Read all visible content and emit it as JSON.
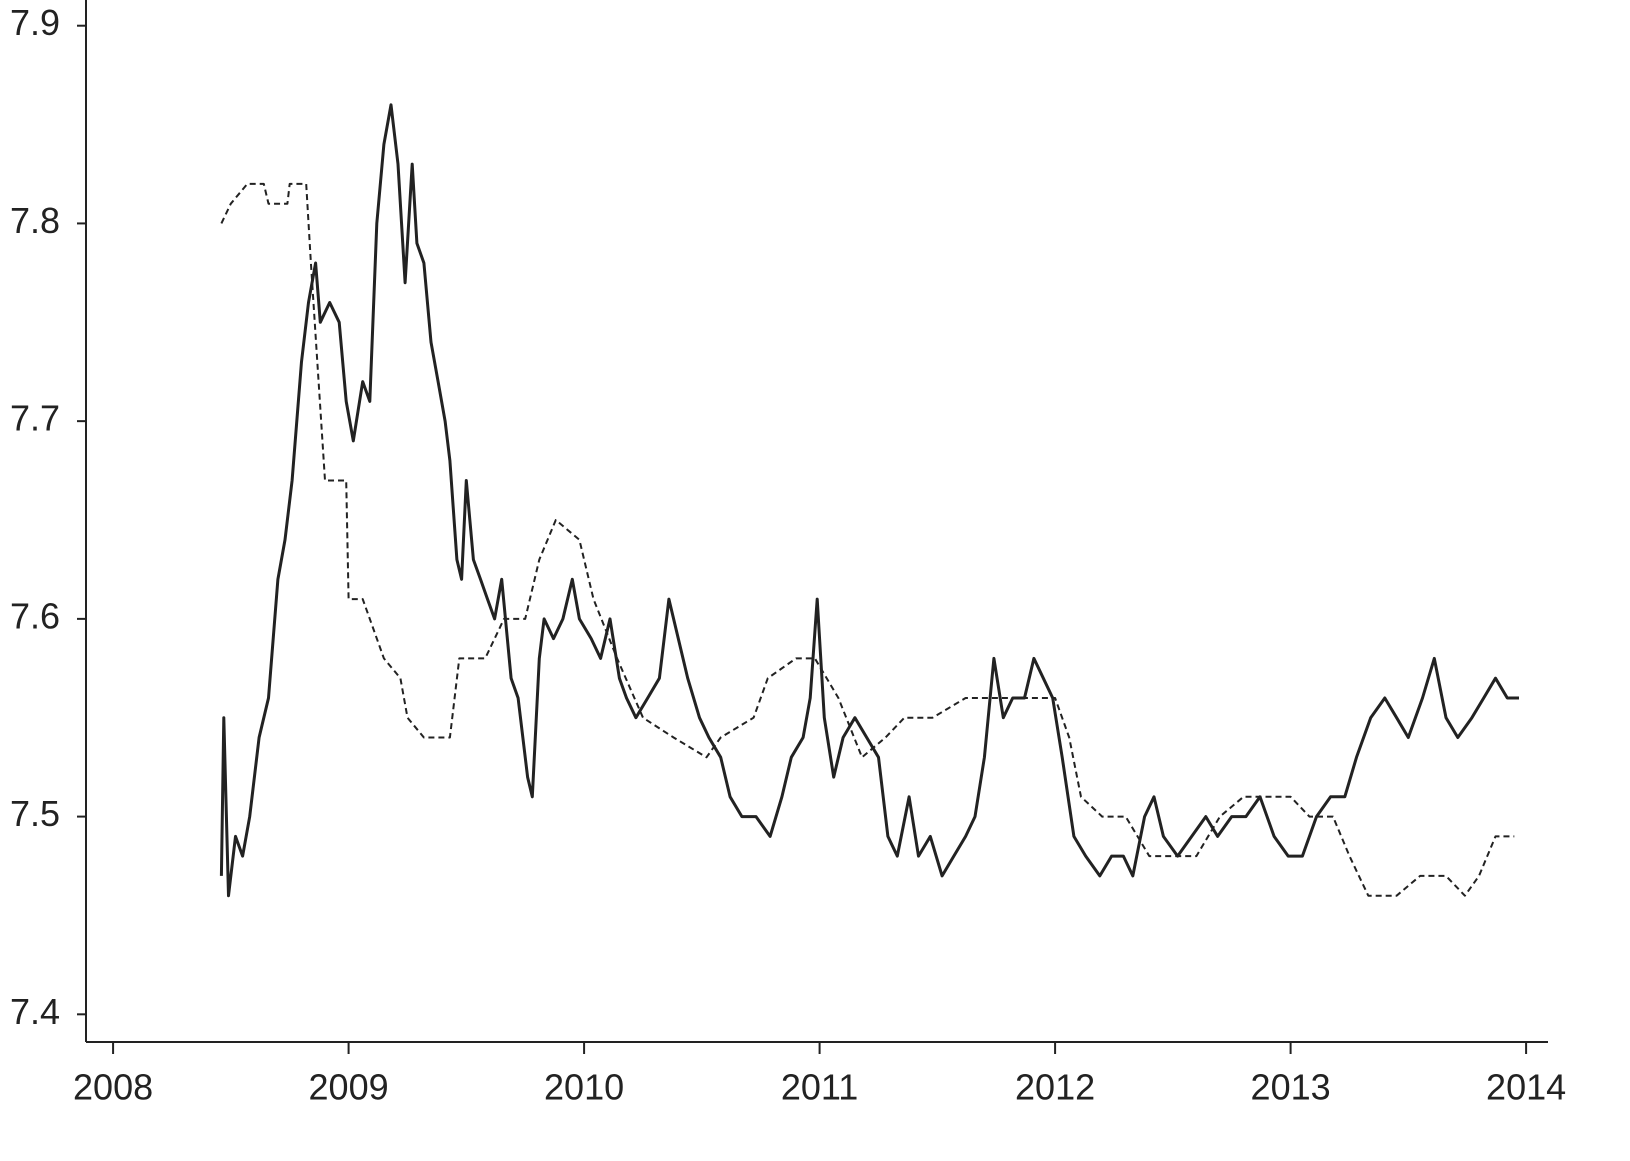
{
  "chart_data": {
    "type": "line",
    "xlim": [
      2007.885,
      2014.093
    ],
    "xticks": [
      2008,
      2009,
      2010,
      2011,
      2012,
      2013,
      2014
    ],
    "ylim": [
      7.386,
      7.913
    ],
    "yticks": [
      7.4,
      7.5,
      7.6,
      7.7,
      7.8,
      7.9
    ],
    "series": [
      {
        "color": "#222222",
        "style": "solid",
        "x": [
          2008.46,
          2008.47,
          2008.49,
          2008.52,
          2008.55,
          2008.58,
          2008.62,
          2008.66,
          2008.7,
          2008.73,
          2008.76,
          2008.78,
          2008.8,
          2008.83,
          2008.86,
          2008.88,
          2008.92,
          2008.96,
          2008.99,
          2009.02,
          2009.06,
          2009.09,
          2009.12,
          2009.15,
          2009.18,
          2009.21,
          2009.24,
          2009.27,
          2009.29,
          2009.32,
          2009.35,
          2009.38,
          2009.41,
          2009.43,
          2009.46,
          2009.48,
          2009.5,
          2009.53,
          2009.56,
          2009.59,
          2009.62,
          2009.65,
          2009.69,
          2009.72,
          2009.76,
          2009.78,
          2009.81,
          2009.83,
          2009.87,
          2009.91,
          2009.95,
          2009.98,
          2010.03,
          2010.07,
          2010.11,
          2010.15,
          2010.18,
          2010.22,
          2010.27,
          2010.32,
          2010.36,
          2010.4,
          2010.44,
          2010.49,
          2010.53,
          2010.58,
          2010.62,
          2010.67,
          2010.73,
          2010.79,
          2010.84,
          2010.88,
          2010.93,
          2010.96,
          2010.99,
          2011.02,
          2011.06,
          2011.1,
          2011.15,
          2011.2,
          2011.25,
          2011.29,
          2011.33,
          2011.38,
          2011.42,
          2011.47,
          2011.52,
          2011.57,
          2011.62,
          2011.66,
          2011.7,
          2011.74,
          2011.78,
          2011.82,
          2011.87,
          2011.91,
          2011.95,
          2011.99,
          2012.03,
          2012.08,
          2012.13,
          2012.19,
          2012.24,
          2012.29,
          2012.33,
          2012.38,
          2012.42,
          2012.46,
          2012.52,
          2012.58,
          2012.64,
          2012.69,
          2012.75,
          2012.81,
          2012.87,
          2012.93,
          2012.99,
          2013.05,
          2013.11,
          2013.17,
          2013.23,
          2013.28,
          2013.34,
          2013.4,
          2013.45,
          2013.5,
          2013.56,
          2013.61,
          2013.66,
          2013.71,
          2013.77,
          2013.82,
          2013.87,
          2013.92,
          2013.97
        ],
        "values": [
          7.47,
          7.55,
          7.46,
          7.49,
          7.48,
          7.5,
          7.54,
          7.56,
          7.62,
          7.64,
          7.67,
          7.7,
          7.73,
          7.76,
          7.78,
          7.75,
          7.76,
          7.75,
          7.71,
          7.69,
          7.72,
          7.71,
          7.8,
          7.84,
          7.86,
          7.83,
          7.77,
          7.83,
          7.79,
          7.78,
          7.74,
          7.72,
          7.7,
          7.68,
          7.63,
          7.62,
          7.67,
          7.63,
          7.62,
          7.61,
          7.6,
          7.62,
          7.57,
          7.56,
          7.52,
          7.51,
          7.58,
          7.6,
          7.59,
          7.6,
          7.62,
          7.6,
          7.59,
          7.58,
          7.6,
          7.57,
          7.56,
          7.55,
          7.56,
          7.57,
          7.61,
          7.59,
          7.57,
          7.55,
          7.54,
          7.53,
          7.51,
          7.5,
          7.5,
          7.49,
          7.51,
          7.53,
          7.54,
          7.56,
          7.61,
          7.55,
          7.52,
          7.54,
          7.55,
          7.54,
          7.53,
          7.49,
          7.48,
          7.51,
          7.48,
          7.49,
          7.47,
          7.48,
          7.49,
          7.5,
          7.53,
          7.58,
          7.55,
          7.56,
          7.56,
          7.58,
          7.57,
          7.56,
          7.53,
          7.49,
          7.48,
          7.47,
          7.48,
          7.48,
          7.47,
          7.5,
          7.51,
          7.49,
          7.48,
          7.49,
          7.5,
          7.49,
          7.5,
          7.5,
          7.51,
          7.49,
          7.48,
          7.48,
          7.5,
          7.51,
          7.51,
          7.53,
          7.55,
          7.56,
          7.55,
          7.54,
          7.56,
          7.58,
          7.55,
          7.54,
          7.55,
          7.56,
          7.57,
          7.56,
          7.56
        ]
      },
      {
        "color": "#222222",
        "style": "dashed",
        "x": [
          2008.46,
          2008.5,
          2008.57,
          2008.64,
          2008.66,
          2008.74,
          2008.75,
          2008.82,
          2008.84,
          2008.9,
          2008.99,
          2009.0,
          2009.06,
          2009.09,
          2009.15,
          2009.22,
          2009.25,
          2009.32,
          2009.43,
          2009.47,
          2009.58,
          2009.66,
          2009.75,
          2009.81,
          2009.88,
          2009.98,
          2010.04,
          2010.14,
          2010.25,
          2010.38,
          2010.52,
          2010.58,
          2010.72,
          2010.78,
          2010.9,
          2010.98,
          2011.08,
          2011.18,
          2011.28,
          2011.36,
          2011.48,
          2011.62,
          2011.8,
          2011.9,
          2012.0,
          2012.06,
          2012.11,
          2012.2,
          2012.3,
          2012.4,
          2012.6,
          2012.7,
          2012.8,
          2012.92,
          2013.0,
          2013.08,
          2013.18,
          2013.25,
          2013.33,
          2013.45,
          2013.55,
          2013.66,
          2013.74,
          2013.8,
          2013.87,
          2013.95
        ],
        "values": [
          7.8,
          7.81,
          7.82,
          7.82,
          7.81,
          7.81,
          7.82,
          7.82,
          7.78,
          7.67,
          7.67,
          7.61,
          7.61,
          7.6,
          7.58,
          7.57,
          7.55,
          7.54,
          7.54,
          7.58,
          7.58,
          7.6,
          7.6,
          7.63,
          7.65,
          7.64,
          7.61,
          7.58,
          7.55,
          7.54,
          7.53,
          7.54,
          7.55,
          7.57,
          7.58,
          7.58,
          7.56,
          7.53,
          7.54,
          7.55,
          7.55,
          7.56,
          7.56,
          7.56,
          7.56,
          7.54,
          7.51,
          7.5,
          7.5,
          7.48,
          7.48,
          7.5,
          7.51,
          7.51,
          7.51,
          7.5,
          7.5,
          7.48,
          7.46,
          7.46,
          7.47,
          7.47,
          7.46,
          7.47,
          7.49,
          7.49
        ]
      }
    ]
  }
}
